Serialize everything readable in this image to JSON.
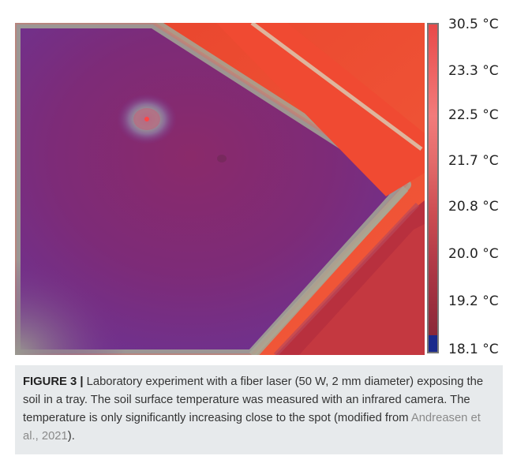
{
  "figure": {
    "colorbar_ticks": [
      "30.5 °C",
      "23.3 °C",
      "22.5 °C",
      "21.7 °C",
      "20.8 °C",
      "20.0 °C",
      "19.2 °C",
      "18.1 °C"
    ],
    "colors": {
      "soil": "#7a2b80",
      "hot": "#ee3a2a",
      "edge_glow": "#a0a090",
      "laser_spot": "#ff4040"
    }
  },
  "caption": {
    "label": "FIGURE 3 |",
    "text": " Laboratory experiment with a fiber laser (50 W, 2 mm diameter) exposing the soil in a tray. The soil surface temperature was measured with an infrared camera. The temperature is only significantly increasing close to the spot (modified from ",
    "citation": "Andreasen et al., 2021",
    "tail": ")."
  }
}
